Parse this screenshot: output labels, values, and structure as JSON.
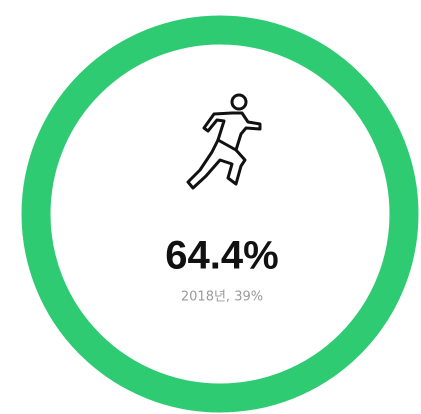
{
  "stat": {
    "value": "64.4%",
    "caption": "2018년, 39%"
  }
}
